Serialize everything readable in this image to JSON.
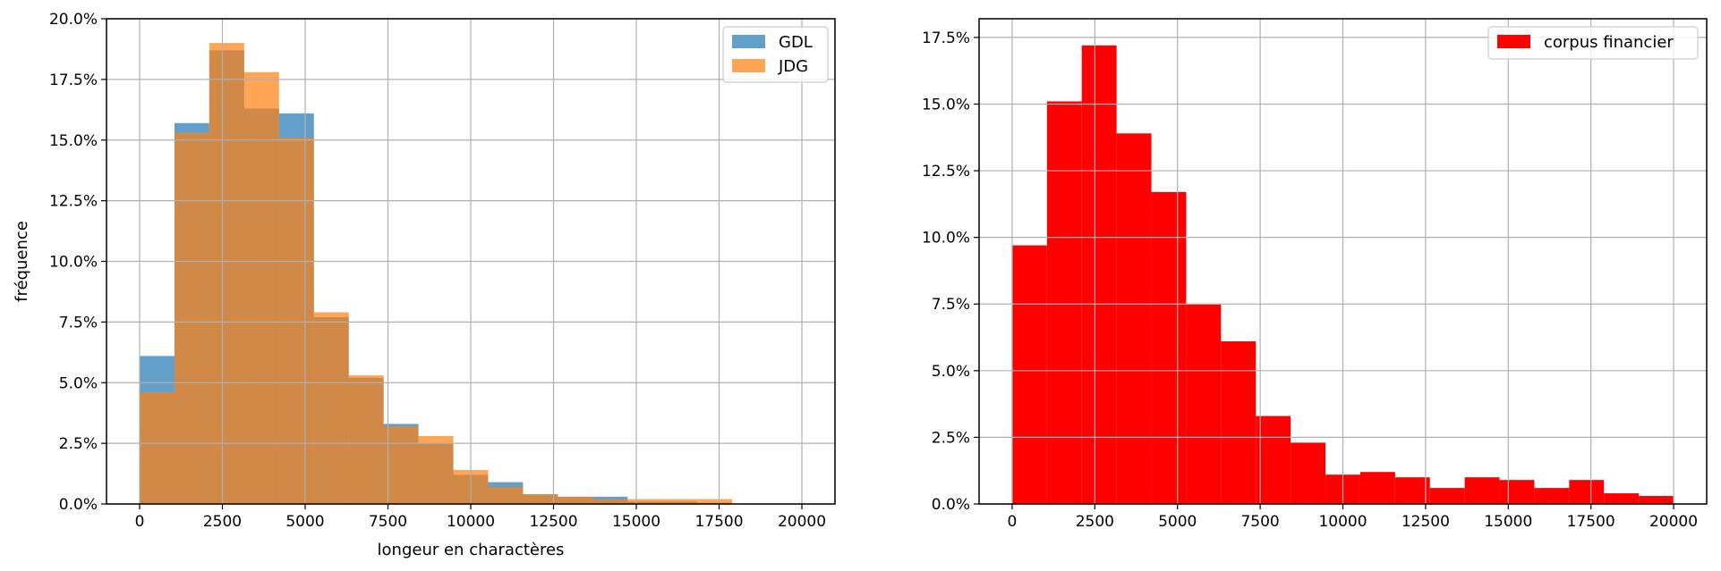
{
  "chart_data": [
    {
      "type": "bar",
      "subtype": "histogram",
      "xlabel": "longeur en charactères",
      "ylabel": "fréquence",
      "xlim": [
        -1000,
        21000
      ],
      "ylim": [
        0,
        0.2
      ],
      "x_ticks": [
        0,
        2500,
        5000,
        7500,
        10000,
        12500,
        15000,
        17500,
        20000
      ],
      "y_ticks": [
        0,
        0.025,
        0.05,
        0.075,
        0.1,
        0.125,
        0.15,
        0.175,
        0.2
      ],
      "y_tick_labels": [
        "0.0%",
        "2.5%",
        "5.0%",
        "7.5%",
        "10.0%",
        "12.5%",
        "15.0%",
        "17.5%",
        "20.0%"
      ],
      "x_tick_labels": [
        "0",
        "2500",
        "5000",
        "7500",
        "10000",
        "12500",
        "15000",
        "17500",
        "20000"
      ],
      "grid": true,
      "legend_position": "top-right",
      "bin_edges": [
        0,
        1053,
        2105,
        3158,
        4211,
        5263,
        6316,
        7368,
        8421,
        9474,
        10526,
        11579,
        12632,
        13684,
        14737,
        15789,
        16842,
        17895,
        18947,
        20000
      ],
      "series": [
        {
          "name": "GDL",
          "color": "#1f77b4",
          "opacity": 0.7,
          "values": [
            0.061,
            0.157,
            0.187,
            0.163,
            0.161,
            0.077,
            0.052,
            0.033,
            0.025,
            0.012,
            0.009,
            0.004,
            0.003,
            0.003,
            0.001,
            0.001,
            0.0005,
            0,
            0
          ]
        },
        {
          "name": "JDG",
          "color": "#ff7f0e",
          "opacity": 0.7,
          "values": [
            0.046,
            0.153,
            0.19,
            0.178,
            0.151,
            0.079,
            0.053,
            0.032,
            0.028,
            0.014,
            0.007,
            0.004,
            0.003,
            0.002,
            0.002,
            0.002,
            0.002,
            0,
            0
          ]
        }
      ]
    },
    {
      "type": "bar",
      "subtype": "histogram",
      "xlabel": "",
      "ylabel": "",
      "xlim": [
        -1000,
        21000
      ],
      "ylim": [
        0,
        0.182
      ],
      "x_ticks": [
        0,
        2500,
        5000,
        7500,
        10000,
        12500,
        15000,
        17500,
        20000
      ],
      "y_ticks": [
        0,
        0.025,
        0.05,
        0.075,
        0.1,
        0.125,
        0.15,
        0.175
      ],
      "y_tick_labels": [
        "0.0%",
        "2.5%",
        "5.0%",
        "7.5%",
        "10.0%",
        "12.5%",
        "15.0%",
        "17.5%"
      ],
      "x_tick_labels": [
        "0",
        "2500",
        "5000",
        "7500",
        "10000",
        "12500",
        "15000",
        "17500",
        "20000"
      ],
      "grid": true,
      "legend_position": "top-right",
      "bin_edges": [
        0,
        1053,
        2105,
        3158,
        4211,
        5263,
        6316,
        7368,
        8421,
        9474,
        10526,
        11579,
        12632,
        13684,
        14737,
        15789,
        16842,
        17895,
        18947,
        20000
      ],
      "series": [
        {
          "name": "corpus financier",
          "color": "#ff0000",
          "opacity": 1,
          "values": [
            0.097,
            0.151,
            0.172,
            0.139,
            0.117,
            0.075,
            0.061,
            0.033,
            0.023,
            0.011,
            0.012,
            0.01,
            0.006,
            0.01,
            0.009,
            0.006,
            0.009,
            0.004,
            0.003
          ]
        }
      ]
    }
  ]
}
